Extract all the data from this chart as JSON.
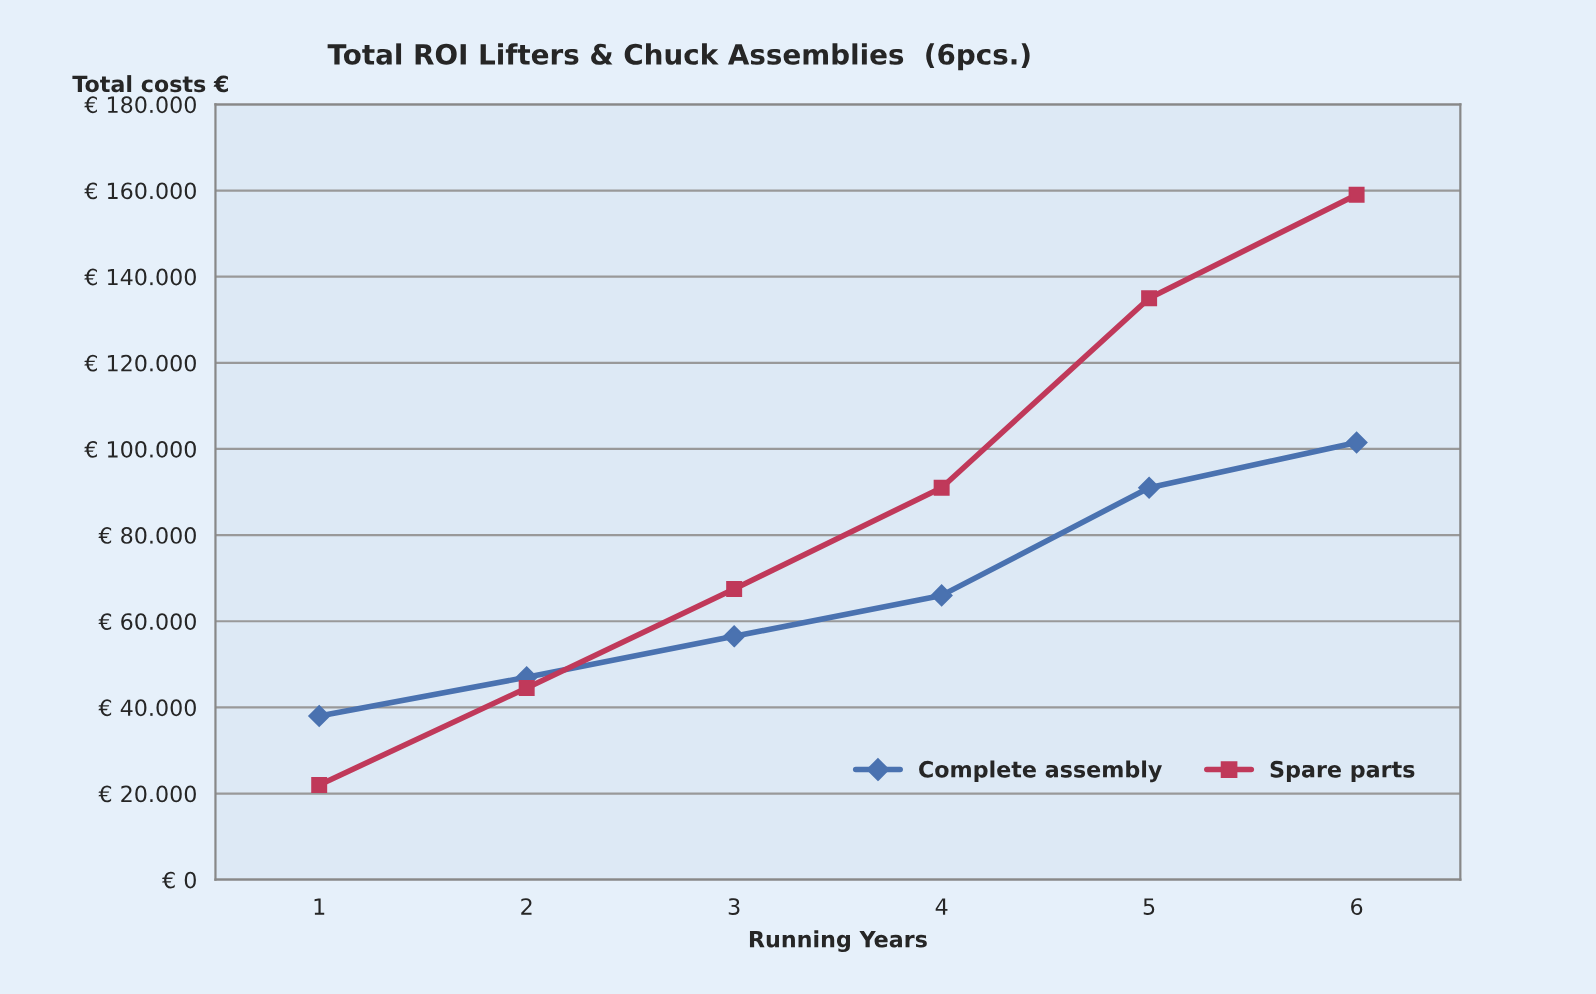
{
  "chart_data": {
    "type": "line",
    "title": "Total ROI Lifters & Chuck Assemblies  (6pcs.)",
    "xlabel": "Running Years",
    "ylabel": "Total costs €",
    "categories": [
      "1",
      "2",
      "3",
      "4",
      "5",
      "6"
    ],
    "series": [
      {
        "name": "Complete assembly",
        "color": "#4a72b0",
        "marker": "diamond",
        "values": [
          38000,
          47000,
          56500,
          66000,
          91000,
          101500
        ]
      },
      {
        "name": "Spare parts",
        "color": "#c0395a",
        "marker": "square",
        "values": [
          22000,
          44500,
          67500,
          91000,
          135000,
          159000
        ]
      }
    ],
    "ylim": [
      0,
      180000
    ],
    "yticks": [
      {
        "value": 0,
        "label": "€ 0"
      },
      {
        "value": 20000,
        "label": "€ 20.000"
      },
      {
        "value": 40000,
        "label": "€ 40.000"
      },
      {
        "value": 60000,
        "label": "€ 60.000"
      },
      {
        "value": 80000,
        "label": "€ 80.000"
      },
      {
        "value": 100000,
        "label": "€ 100.000"
      },
      {
        "value": 120000,
        "label": "€ 120.000"
      },
      {
        "value": 140000,
        "label": "€ 140.000"
      },
      {
        "value": 160000,
        "label": "€ 160.000"
      },
      {
        "value": 180000,
        "label": "€ 180.000"
      }
    ],
    "grid": "y",
    "legend": "bottom right",
    "line_style": "solid"
  }
}
